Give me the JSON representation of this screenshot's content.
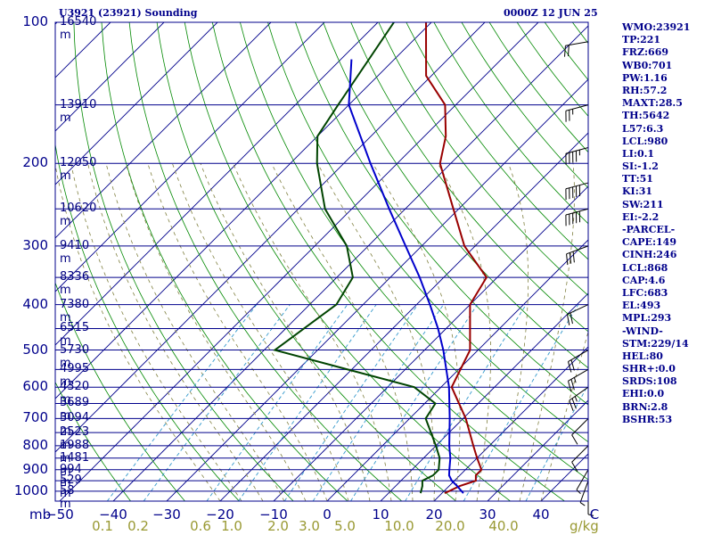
{
  "header": {
    "station": "U3921 (23921) Sounding",
    "time": "0000Z 12 JUN 25"
  },
  "stats": [
    "WMO:23921",
    "TP:221",
    "FRZ:669",
    "WB0:701",
    "PW:1.16",
    "RH:57.2",
    "MAXT:28.5",
    "TH:5642",
    "L57:6.3",
    "LCL:980",
    "LI:0.1",
    "SI:-1.2",
    "TT:51",
    "KI:31",
    "SW:211",
    "EI:-2.2",
    "-PARCEL-",
    "CAPE:149",
    "CINH:246",
    "LCL:868",
    "CAP:4.6",
    "LFC:683",
    "EL:493",
    "MPL:293",
    "-WIND-",
    "STM:229/14",
    "HEL:80",
    "SHR+:0.0",
    "SRDS:108",
    "EHI:0.0",
    "BRN:2.8",
    "BSHR:53"
  ],
  "axis": {
    "pressure_unit": "mb",
    "mixing_ratio_unit": "g/kg"
  },
  "colors": {
    "isobar": "#00008b",
    "isotherm": "#00008b",
    "dry_adiabat": "#008800",
    "moist_adiabat": "#808040",
    "mixing_ratio": "#3399cc",
    "temperature": "#990000",
    "dewpoint": "#004400",
    "parcel": "#0000cc",
    "frame": "#00008b"
  },
  "chart_data": {
    "type": "line",
    "title": "",
    "p_ticks": [
      100,
      200,
      300,
      400,
      500,
      600,
      700,
      800,
      900,
      1000
    ],
    "t_ticks": [
      -50,
      -40,
      -30,
      -20,
      -10,
      0,
      10,
      20,
      30,
      40,
      "C"
    ],
    "mixing_ratio_labels": [
      "0.1",
      "0.2",
      "0.6",
      "1.0",
      "2.0",
      "3.0",
      "5.0",
      "10.0",
      "20.0",
      "40.0"
    ],
    "height_labels": [
      {
        "p": 100,
        "label": "16540 m"
      },
      {
        "p": 150,
        "label": "13910 m"
      },
      {
        "p": 200,
        "label": "12050 m"
      },
      {
        "p": 250,
        "label": "10620 m"
      },
      {
        "p": 300,
        "label": "9410 m"
      },
      {
        "p": 350,
        "label": "8336 m"
      },
      {
        "p": 400,
        "label": "7380 m"
      },
      {
        "p": 450,
        "label": "6515 m"
      },
      {
        "p": 500,
        "label": "5730 m"
      },
      {
        "p": 550,
        "label": "4995 m"
      },
      {
        "p": 600,
        "label": "4320 m"
      },
      {
        "p": 650,
        "label": "3689 m"
      },
      {
        "p": 700,
        "label": "3094 m"
      },
      {
        "p": 750,
        "label": "2523 m"
      },
      {
        "p": 800,
        "label": "1988 m"
      },
      {
        "p": 850,
        "label": "1481 m"
      },
      {
        "p": 900,
        "label": "994 m"
      },
      {
        "p": 950,
        "label": "529 m"
      },
      {
        "p": 1000,
        "label": "58 m"
      }
    ],
    "series": [
      {
        "values": [
          [
            1010,
            20.5
          ],
          [
            975,
            22
          ],
          [
            950,
            24
          ],
          [
            925,
            23
          ],
          [
            900,
            23
          ],
          [
            850,
            20
          ],
          [
            800,
            17
          ],
          [
            700,
            10.5
          ],
          [
            600,
            2
          ],
          [
            500,
            -1.5
          ],
          [
            400,
            -10
          ],
          [
            350,
            -12
          ],
          [
            300,
            -22
          ],
          [
            250,
            -31
          ],
          [
            200,
            -42
          ],
          [
            175,
            -46
          ],
          [
            150,
            -52
          ],
          [
            130,
            -61
          ],
          [
            100,
            -71
          ]
        ]
      },
      {
        "values": [
          [
            1010,
            16
          ],
          [
            975,
            15
          ],
          [
            950,
            14
          ],
          [
            925,
            15
          ],
          [
            900,
            15
          ],
          [
            850,
            13
          ],
          [
            800,
            10
          ],
          [
            700,
            3
          ],
          [
            650,
            2
          ],
          [
            600,
            -5
          ],
          [
            500,
            -38
          ],
          [
            400,
            -35
          ],
          [
            350,
            -37
          ],
          [
            300,
            -44
          ],
          [
            250,
            -55
          ],
          [
            200,
            -65
          ],
          [
            175,
            -70
          ],
          [
            150,
            -72
          ],
          [
            100,
            -77
          ]
        ]
      },
      {
        "values": [
          [
            1010,
            24
          ],
          [
            975,
            21.5
          ],
          [
            950,
            19.5
          ],
          [
            925,
            18
          ],
          [
            900,
            17
          ],
          [
            850,
            15
          ],
          [
            800,
            12.5
          ],
          [
            700,
            7.5
          ],
          [
            600,
            1.5
          ],
          [
            500,
            -6.5
          ],
          [
            450,
            -11.5
          ],
          [
            400,
            -17.5
          ],
          [
            350,
            -24.5
          ],
          [
            300,
            -33
          ],
          [
            250,
            -43
          ],
          [
            200,
            -55
          ],
          [
            150,
            -70
          ],
          [
            120,
            -78
          ]
        ]
      }
    ],
    "wind_barbs": [
      {
        "p": 110,
        "dir": 260,
        "kt": 20
      },
      {
        "p": 150,
        "dir": 255,
        "kt": 25
      },
      {
        "p": 185,
        "dir": 255,
        "kt": 45
      },
      {
        "p": 220,
        "dir": 255,
        "kt": 50
      },
      {
        "p": 250,
        "dir": 255,
        "kt": 50
      },
      {
        "p": 300,
        "dir": 250,
        "kt": 30
      },
      {
        "p": 400,
        "dir": 245,
        "kt": 20
      },
      {
        "p": 500,
        "dir": 240,
        "kt": 20
      },
      {
        "p": 550,
        "dir": 240,
        "kt": 25
      },
      {
        "p": 600,
        "dir": 235,
        "kt": 25
      },
      {
        "p": 700,
        "dir": 225,
        "kt": 10
      },
      {
        "p": 800,
        "dir": 225,
        "kt": 10
      },
      {
        "p": 900,
        "dir": 210,
        "kt": 5
      },
      {
        "p": 950,
        "dir": 200,
        "kt": 5
      },
      {
        "p": 1000,
        "dir": 180,
        "kt": 5
      }
    ]
  }
}
